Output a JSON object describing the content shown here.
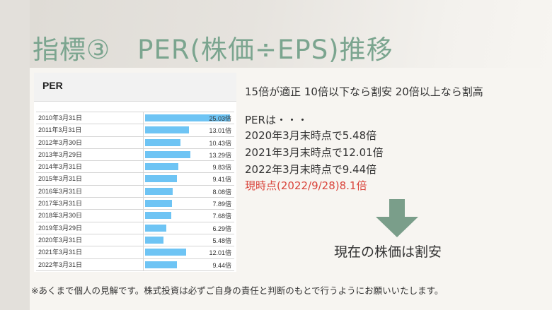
{
  "slide": {
    "title": "指標③　PER(株価÷EPS)推移",
    "panel_title": "PER",
    "rows": [
      {
        "date": "2010年3月31日",
        "label": "25.03倍",
        "value": 25.03
      },
      {
        "date": "2011年3月31日",
        "label": "13.01倍",
        "value": 13.01
      },
      {
        "date": "2012年3月30日",
        "label": "10.43倍",
        "value": 10.43
      },
      {
        "date": "2013年3月29日",
        "label": "13.29倍",
        "value": 13.29
      },
      {
        "date": "2014年3月31日",
        "label": "9.83倍",
        "value": 9.83
      },
      {
        "date": "2015年3月31日",
        "label": "9.41倍",
        "value": 9.41
      },
      {
        "date": "2016年3月31日",
        "label": "8.08倍",
        "value": 8.08
      },
      {
        "date": "2017年3月31日",
        "label": "7.89倍",
        "value": 7.89
      },
      {
        "date": "2018年3月30日",
        "label": "7.68倍",
        "value": 7.68
      },
      {
        "date": "2019年3月29日",
        "label": "6.29倍",
        "value": 6.29
      },
      {
        "date": "2020年3月31日",
        "label": "5.48倍",
        "value": 5.48
      },
      {
        "date": "2021年3月31日",
        "label": "12.01倍",
        "value": 12.01
      },
      {
        "date": "2022年3月31日",
        "label": "9.44倍",
        "value": 9.44
      }
    ],
    "criteria": "15倍が適正 10倍以下なら割安 20倍以上なら割高",
    "per_heading": "PERは・・・",
    "per_2020": "2020年3月末時点で5.48倍",
    "per_2021": "2021年3月末時点で12.01倍",
    "per_2022": "2022年3月末時点で9.44倍",
    "per_current": "現時点(2022/9/28)8.1倍",
    "conclusion": "現在の株価は割安",
    "disclaimer": "※あくまで個人の見解です。株式投資は必ずご自身の責任と判断のもとで行うようにお願いいたします。",
    "colors": {
      "title": "#7ba58f",
      "bar": "#6ec4f4",
      "arrow": "#7a9e8a",
      "highlight": "#d9443b"
    }
  }
}
